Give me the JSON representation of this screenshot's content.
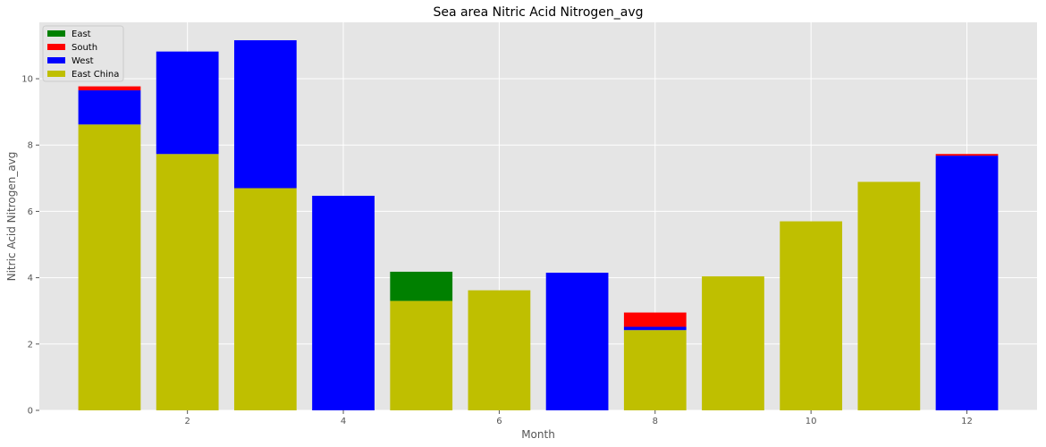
{
  "chart_data": {
    "type": "bar",
    "stacked": true,
    "title": "Sea area Nitric Acid Nitrogen_avg",
    "xlabel": "Month",
    "ylabel": "Nitric Acid Nitrogen_avg",
    "x": [
      1,
      2,
      3,
      4,
      5,
      6,
      7,
      8,
      9,
      10,
      11,
      12
    ],
    "xticks": [
      2,
      4,
      6,
      8,
      10,
      12
    ],
    "yticks": [
      0,
      2,
      4,
      6,
      8,
      10
    ],
    "xlim": [
      0.1,
      12.9
    ],
    "ylim": [
      0,
      11.7
    ],
    "grid": true,
    "legend_position": "top-left",
    "background": "#e5e5e5",
    "series": [
      {
        "name": "East China",
        "color": "#bfbf00",
        "values": [
          8.62,
          7.73,
          6.7,
          0,
          3.3,
          3.62,
          0,
          2.42,
          4.04,
          5.7,
          6.89,
          0
        ]
      },
      {
        "name": "West",
        "color": "#0000ff",
        "values": [
          1.03,
          3.09,
          4.46,
          6.47,
          0,
          0,
          4.15,
          0.1,
          0,
          0,
          0,
          7.68
        ]
      },
      {
        "name": "South",
        "color": "#ff0000",
        "values": [
          0.12,
          0,
          0,
          0,
          0,
          0,
          0,
          0.43,
          0,
          0,
          0,
          0.05
        ]
      },
      {
        "name": "East",
        "color": "#008000",
        "values": [
          0,
          0,
          0,
          0,
          0.88,
          0,
          0,
          0,
          0,
          0,
          0,
          0
        ]
      }
    ],
    "legend_order": [
      "East",
      "South",
      "West",
      "East China"
    ]
  }
}
